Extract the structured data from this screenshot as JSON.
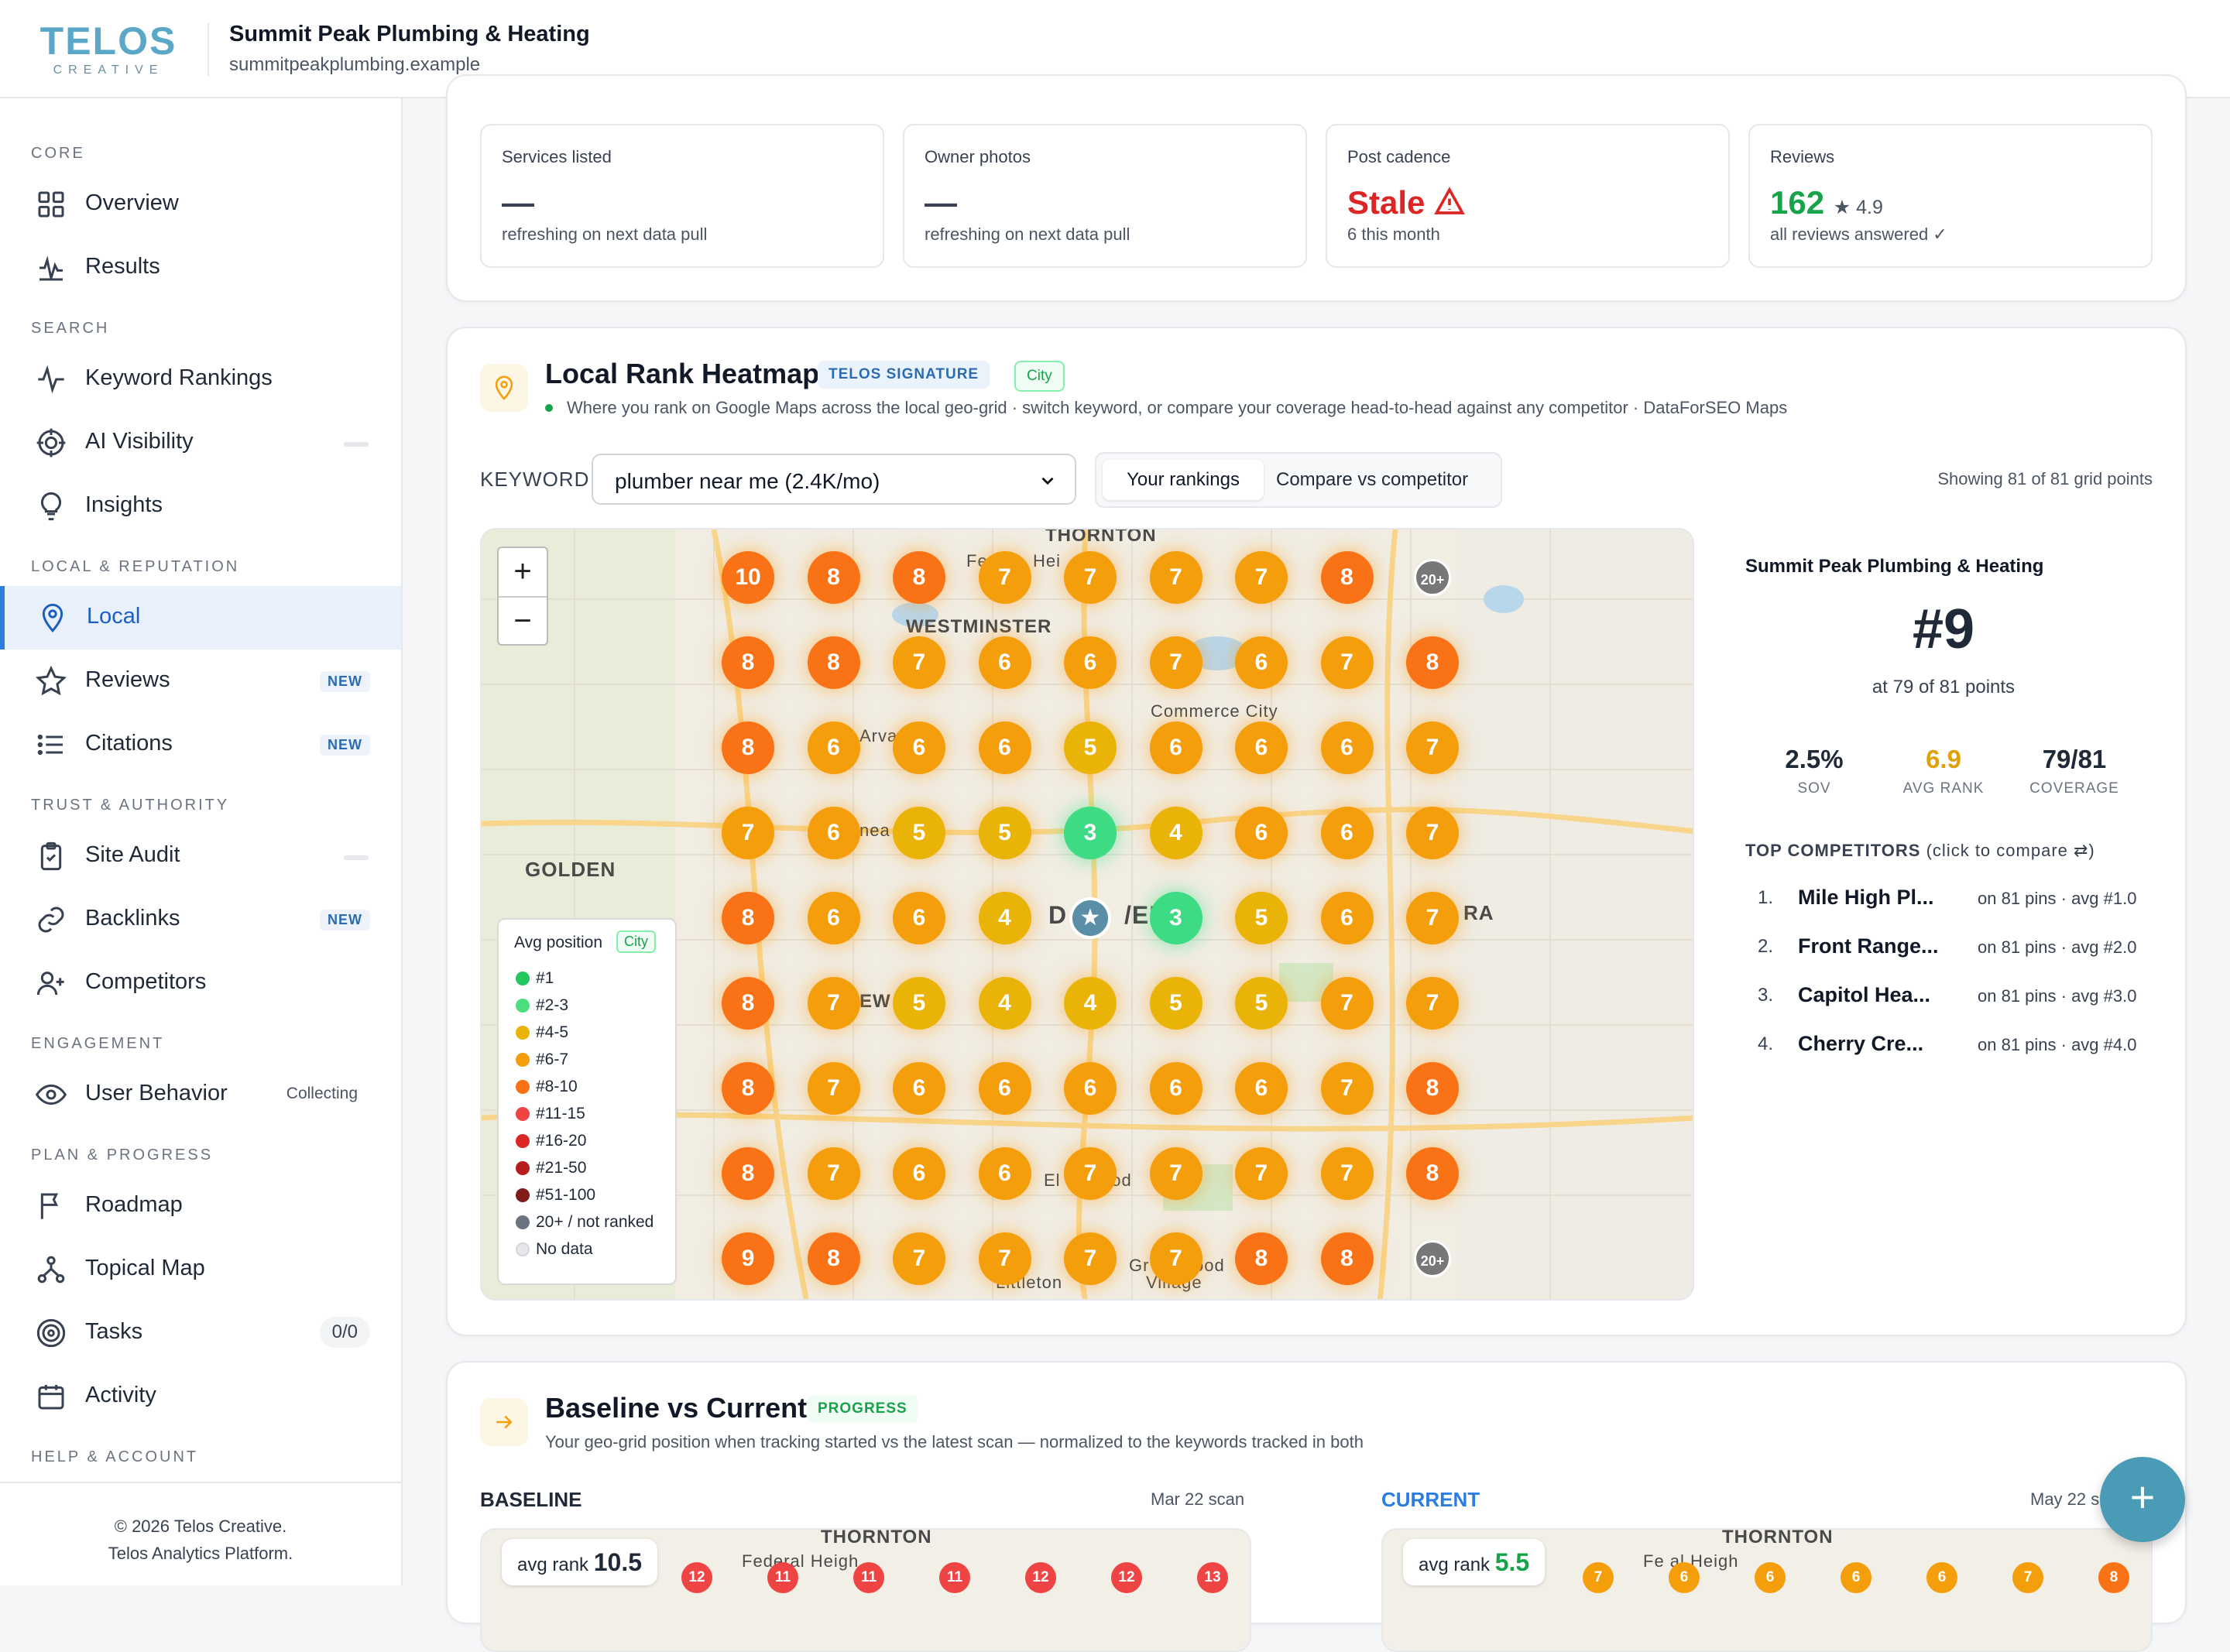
{
  "brand": {
    "word": "TELOS",
    "sub": "CREATIVE"
  },
  "client": {
    "name": "Summit Peak Plumbing & Heating",
    "url": "summitpeakplumbing.example"
  },
  "sidebar": {
    "sections": [
      "CORE",
      "SEARCH",
      "LOCAL & REPUTATION",
      "TRUST & AUTHORITY",
      "ENGAGEMENT",
      "PLAN & PROGRESS",
      "HELP & ACCOUNT"
    ],
    "items": [
      {
        "label": "Overview",
        "icon": "grid-icon"
      },
      {
        "label": "Results",
        "icon": "pulse-icon"
      },
      {
        "label": "Keyword Rankings",
        "icon": "trend-icon"
      },
      {
        "label": "AI Visibility",
        "icon": "target-icon"
      },
      {
        "label": "Insights",
        "icon": "bulb-icon"
      },
      {
        "label": "Local",
        "icon": "map-pin-icon"
      },
      {
        "label": "Reviews",
        "icon": "star-icon",
        "badge": "NEW"
      },
      {
        "label": "Citations",
        "icon": "list-icon",
        "badge": "NEW"
      },
      {
        "label": "Site Audit",
        "icon": "clipboard-icon"
      },
      {
        "label": "Backlinks",
        "icon": "link-icon",
        "badge": "NEW"
      },
      {
        "label": "Competitors",
        "icon": "user-plus-icon"
      },
      {
        "label": "User Behavior",
        "icon": "eye-icon",
        "status": "Collecting"
      },
      {
        "label": "Roadmap",
        "icon": "flag-icon"
      },
      {
        "label": "Topical Map",
        "icon": "tree-icon"
      },
      {
        "label": "Tasks",
        "icon": "bullseye-icon",
        "count": "0/0"
      },
      {
        "label": "Activity",
        "icon": "calendar-icon"
      }
    ],
    "footer": {
      "line1": "© 2026 Telos Creative.",
      "line2": "Telos Analytics Platform."
    }
  },
  "stats": [
    {
      "title": "Services listed",
      "value": "—",
      "note": "refreshing on next data pull"
    },
    {
      "title": "Owner photos",
      "value": "—",
      "note": "refreshing on next data pull"
    },
    {
      "title": "Post cadence",
      "value": "Stale",
      "note": "6 this month"
    },
    {
      "title": "Reviews",
      "value": "162",
      "rating": "★ 4.9",
      "note": "all reviews answered ✓"
    }
  ],
  "heatmap": {
    "title": "Local Rank Heatmap",
    "signature": "TELOS SIGNATURE",
    "city_tag": "City",
    "subtitle": "Where you rank on Google Maps across the local geo-grid · switch keyword, or compare your coverage head-to-head against any competitor · DataForSEO Maps",
    "keyword_label": "KEYWORD",
    "keyword_value": "plumber near me (2.4K/mo)",
    "tabs": [
      "Your rankings",
      "Compare vs competitor"
    ],
    "showing": "Showing 81 of 81 grid points",
    "zoom_in": "+",
    "zoom_out": "−",
    "map_labels": [
      "THORNTON",
      "WESTMINSTER",
      "Commerce City",
      "GOLDEN",
      "D",
      "/EF",
      "RA",
      "Arva",
      "nea",
      "EW",
      "Fe",
      "Hei",
      "El",
      "ood",
      "Gr",
      "ood",
      "Littleton",
      "Village"
    ],
    "grid": [
      [
        "10",
        "8",
        "8",
        "7",
        "7",
        "7",
        "7",
        "8",
        "20+"
      ],
      [
        "8",
        "8",
        "7",
        "6",
        "6",
        "7",
        "6",
        "7",
        "8"
      ],
      [
        "8",
        "6",
        "6",
        "6",
        "5",
        "6",
        "6",
        "6",
        "7"
      ],
      [
        "7",
        "6",
        "5",
        "5",
        "3",
        "4",
        "6",
        "6",
        "7"
      ],
      [
        "8",
        "6",
        "6",
        "4",
        "★",
        "3",
        "5",
        "6",
        "7"
      ],
      [
        "8",
        "7",
        "5",
        "4",
        "4",
        "5",
        "5",
        "7",
        "7"
      ],
      [
        "8",
        "7",
        "6",
        "6",
        "6",
        "6",
        "6",
        "7",
        "8"
      ],
      [
        "8",
        "7",
        "6",
        "6",
        "7",
        "7",
        "7",
        "7",
        "8"
      ],
      [
        "9",
        "8",
        "7",
        "7",
        "7",
        "7",
        "8",
        "8",
        "20+"
      ]
    ],
    "legend": {
      "title": "Avg position",
      "tag": "City",
      "items": [
        {
          "label": "#1",
          "color": "#22c55e"
        },
        {
          "label": "#2-3",
          "color": "#4ade80"
        },
        {
          "label": "#4-5",
          "color": "#eab308"
        },
        {
          "label": "#6-7",
          "color": "#f59e0b"
        },
        {
          "label": "#8-10",
          "color": "#f97316"
        },
        {
          "label": "#11-15",
          "color": "#ef4444"
        },
        {
          "label": "#16-20",
          "color": "#dc2626"
        },
        {
          "label": "#21-50",
          "color": "#b91c1c"
        },
        {
          "label": "#51-100",
          "color": "#7f1d1d"
        },
        {
          "label": "20+ / not ranked",
          "color": "#6b7280"
        },
        {
          "label": "No data",
          "color": "#e5e7eb"
        }
      ]
    },
    "panel": {
      "name": "Summit Peak Plumbing & Heating",
      "rank": "#9",
      "at": "at 79 of 81 points",
      "kpis": [
        {
          "value": "2.5%",
          "label": "SOV"
        },
        {
          "value": "6.9",
          "label": "AVG RANK"
        },
        {
          "value": "79/81",
          "label": "COVERAGE"
        }
      ],
      "competitors_title": "TOP COMPETITORS",
      "competitors_hint": "(click to compare ⇄)",
      "competitors": [
        {
          "num": "1.",
          "name": "Mile High Pl...",
          "meta": "on 81 pins · avg #1.0"
        },
        {
          "num": "2.",
          "name": "Front Range...",
          "meta": "on 81 pins · avg #2.0"
        },
        {
          "num": "3.",
          "name": "Capitol Hea...",
          "meta": "on 81 pins · avg #3.0"
        },
        {
          "num": "4.",
          "name": "Cherry Cre...",
          "meta": "on 81 pins · avg #4.0"
        }
      ]
    }
  },
  "baseline": {
    "title": "Baseline vs Current",
    "tag": "PROGRESS",
    "subtitle": "Your geo-grid position when tracking started vs the latest scan — normalized to the keywords tracked in both",
    "left": {
      "label": "BASELINE",
      "date": "Mar 22 scan",
      "avg_label": "avg rank",
      "avg": "10.5",
      "pins": [
        "12",
        "11",
        "11",
        "11",
        "12",
        "12",
        "13"
      ],
      "map_labels": [
        "THORNTON",
        "Federal Heigh"
      ]
    },
    "right": {
      "label": "CURRENT",
      "date": "May 22 s",
      "avg_label": "avg rank",
      "avg": "5.5",
      "pins": [
        "7",
        "6",
        "6",
        "6",
        "6",
        "7",
        "8"
      ],
      "map_labels": [
        "THORNTON",
        "Fe al Heigh"
      ]
    }
  },
  "fab": "+"
}
